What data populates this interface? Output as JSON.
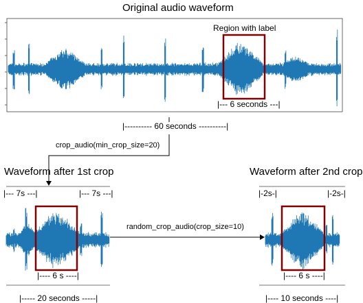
{
  "top": {
    "title": "Original audio  waveform",
    "region_label": "Region with label",
    "region_span": "|--- 6 seconds ---|",
    "duration": "|---------- 60 seconds ----------|"
  },
  "step1": {
    "operation": "crop_audio(min_crop_size=20)"
  },
  "crop1": {
    "title": "Waveform after 1st crop",
    "left_pad": "|--- 7s  ---|",
    "right_pad": "|--- 7s ---|",
    "region_span": "|---- 6 s ----|",
    "duration": "|----- 20 seconds -----|"
  },
  "step2": {
    "operation": "random_crop_audio(crop_size=10)"
  },
  "crop2": {
    "title": "Waveform after 2nd crop",
    "left_pad": "|-2s-|",
    "right_pad": "|-2s-|",
    "region_span": "|---- 6 s ----|",
    "duration": "|---- 10 seconds ----|"
  },
  "colors": {
    "waveform": "#1f77b4",
    "region_box": "#800000",
    "line": "#000000"
  }
}
